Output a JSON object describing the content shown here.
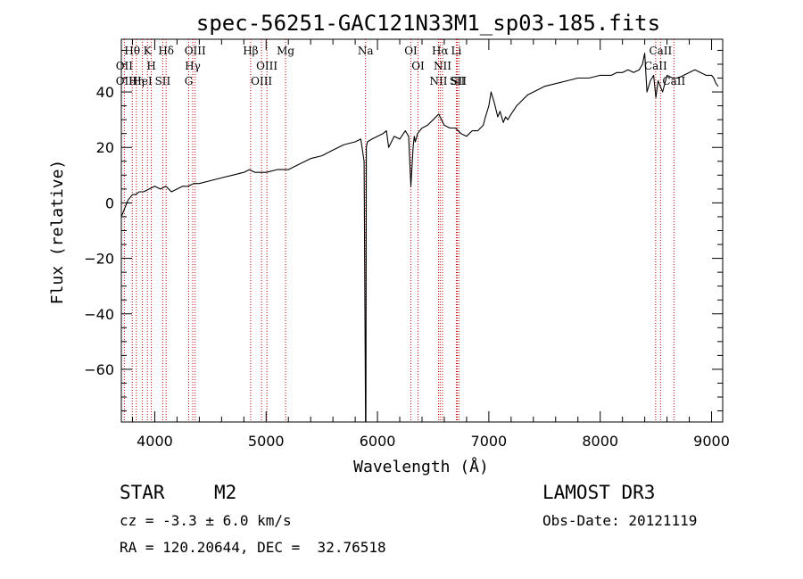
{
  "chart_data": {
    "type": "line",
    "title": "spec-56251-GAC121N33M1_sp03-185.fits",
    "xlabel": "Wavelength (Å)",
    "ylabel": "Flux (relative)",
    "xlim": [
      3700,
      9100
    ],
    "ylim": [
      -79,
      59
    ],
    "x_ticks": [
      4000,
      5000,
      6000,
      7000,
      8000,
      9000
    ],
    "x_tick_labels": [
      "4000",
      "5000",
      "6000",
      "7000",
      "8000",
      "9000"
    ],
    "y_ticks": [
      -60,
      -40,
      -20,
      0,
      20,
      40
    ],
    "y_tick_labels": [
      "−60",
      "−40",
      "−20",
      "0",
      "20",
      "40"
    ],
    "series": [
      {
        "name": "flux",
        "x": [
          3700,
          3720,
          3740,
          3760,
          3780,
          3800,
          3830,
          3860,
          3900,
          3950,
          4000,
          4050,
          4100,
          4150,
          4200,
          4250,
          4300,
          4350,
          4400,
          4500,
          4600,
          4700,
          4800,
          4850,
          4900,
          5000,
          5100,
          5200,
          5300,
          5400,
          5500,
          5600,
          5700,
          5800,
          5850,
          5880,
          5893,
          5896,
          5900,
          5910,
          5950,
          6000,
          6050,
          6080,
          6100,
          6150,
          6200,
          6250,
          6280,
          6300,
          6320,
          6330,
          6340,
          6360,
          6400,
          6450,
          6500,
          6550,
          6600,
          6650,
          6700,
          6750,
          6800,
          6850,
          6900,
          6950,
          6970,
          7000,
          7020,
          7050,
          7080,
          7100,
          7130,
          7150,
          7170,
          7200,
          7250,
          7300,
          7350,
          7400,
          7450,
          7500,
          7600,
          7700,
          7800,
          7900,
          8000,
          8100,
          8150,
          8200,
          8250,
          8300,
          8350,
          8380,
          8400,
          8420,
          8450,
          8480,
          8500,
          8520,
          8540,
          8560,
          8600,
          8650,
          8700,
          8750,
          8800,
          8850,
          8900,
          8950,
          9000,
          9020,
          9040,
          9060
        ],
        "values": [
          -5,
          -3,
          -1,
          1,
          2,
          3,
          3,
          4,
          4,
          5,
          6,
          5,
          6,
          4,
          5,
          6,
          6,
          7,
          7,
          8,
          9,
          10,
          11,
          12,
          11,
          11,
          12,
          12,
          14,
          16,
          17,
          19,
          21,
          22,
          23,
          15,
          -80,
          -80,
          20,
          22,
          23,
          24,
          25,
          26,
          20,
          24,
          23,
          26,
          24,
          6,
          20,
          24,
          22,
          25,
          27,
          28,
          30,
          32,
          28,
          27,
          27,
          25,
          24,
          26,
          26,
          28,
          31,
          35,
          40,
          36,
          31,
          33,
          29,
          31,
          30,
          32,
          35,
          37,
          39,
          40,
          41,
          42,
          43,
          44,
          45,
          45,
          46,
          46,
          47,
          47,
          48,
          47,
          48,
          50,
          54,
          40,
          44,
          46,
          38,
          44,
          42,
          40,
          46,
          45,
          45,
          46,
          47,
          48,
          47,
          46,
          46,
          45,
          43,
          42
        ]
      }
    ],
    "lines": [
      {
        "label": "Hθ",
        "wavelength": 3798
      },
      {
        "label": "OII",
        "wavelength": 3727
      },
      {
        "label": "OII",
        "wavelength": 3727
      },
      {
        "label": "Hη",
        "wavelength": 3835
      },
      {
        "label": "HeI",
        "wavelength": 3889
      },
      {
        "label": "K",
        "wavelength": 3934
      },
      {
        "label": "H",
        "wavelength": 3969
      },
      {
        "label": "SII",
        "wavelength": 4072
      },
      {
        "label": "Hδ",
        "wavelength": 4102
      },
      {
        "label": "OIII",
        "wavelength": 4363
      },
      {
        "label": "Hγ",
        "wavelength": 4341
      },
      {
        "label": "G",
        "wavelength": 4305
      },
      {
        "label": "Hβ",
        "wavelength": 4861
      },
      {
        "label": "OIII",
        "wavelength": 5007
      },
      {
        "label": "OIII",
        "wavelength": 4959
      },
      {
        "label": "Mg",
        "wavelength": 5175
      },
      {
        "label": "Na",
        "wavelength": 5893
      },
      {
        "label": "OI",
        "wavelength": 6300
      },
      {
        "label": "OI",
        "wavelength": 6364
      },
      {
        "label": "Hα",
        "wavelength": 6563
      },
      {
        "label": "NII",
        "wavelength": 6548
      },
      {
        "label": "NII",
        "wavelength": 6584
      },
      {
        "label": "SII",
        "wavelength": 6717
      },
      {
        "label": "Li",
        "wavelength": 6708
      },
      {
        "label": "SII",
        "wavelength": 6731
      },
      {
        "label": "CaII",
        "wavelength": 8542
      },
      {
        "label": "CaII",
        "wavelength": 8498
      },
      {
        "label": "CaII",
        "wavelength": 8662
      }
    ]
  },
  "info": {
    "object_class": "STAR",
    "subclass": "M2",
    "survey": "LAMOST DR3",
    "redshift": "cz = -3.3 ± 6.0 km/s",
    "obs_date": "Obs-Date: 20121119",
    "coords": "RA = 120.20644, DEC =  32.76518"
  },
  "colors": {
    "line_marker": "#c00000",
    "spectrum": "#000000"
  }
}
